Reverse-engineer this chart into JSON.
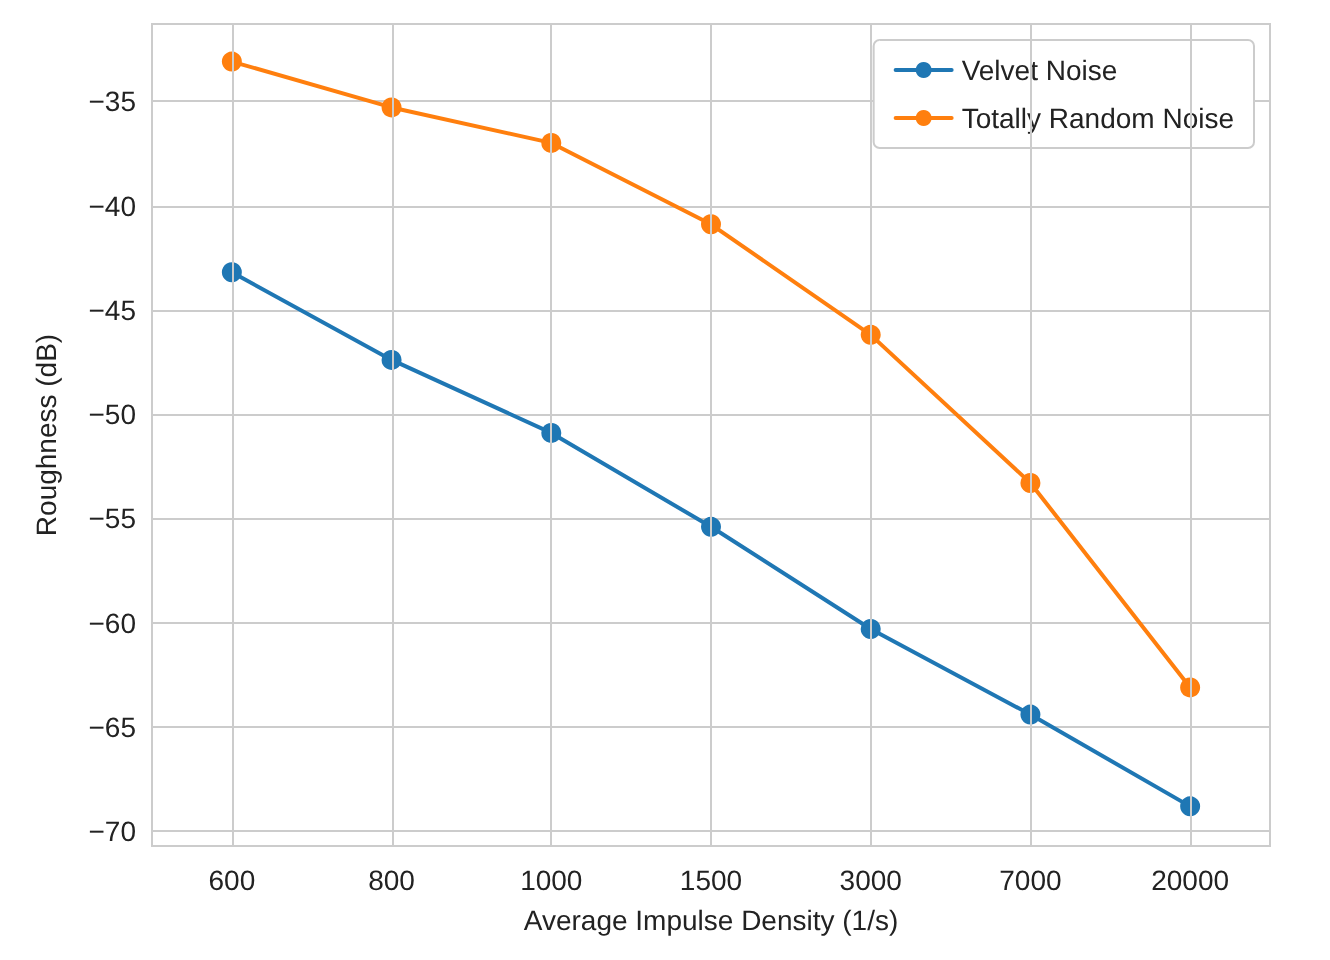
{
  "chart_data": {
    "type": "line",
    "xlabel": "Average Impulse Density (1/s)",
    "ylabel": "Roughness (dB)",
    "categories": [
      "600",
      "800",
      "1000",
      "1500",
      "3000",
      "7000",
      "20000"
    ],
    "series": [
      {
        "name": "Velvet Noise",
        "color": "#1f77b4",
        "values": [
          -43.2,
          -47.4,
          -50.9,
          -55.4,
          -60.3,
          -64.4,
          -68.8
        ]
      },
      {
        "name": "Totally Random Noise",
        "color": "#ff7f0e",
        "values": [
          -33.1,
          -35.3,
          -37.0,
          -40.9,
          -46.2,
          -53.3,
          -63.1
        ]
      }
    ],
    "ylim": [
      -70.7,
      -31.3
    ],
    "yticks": [
      -70,
      -65,
      -60,
      -55,
      -50,
      -45,
      -40,
      -35
    ],
    "grid": true,
    "legend": "top right",
    "marker": "circle",
    "line_style": "solid"
  }
}
